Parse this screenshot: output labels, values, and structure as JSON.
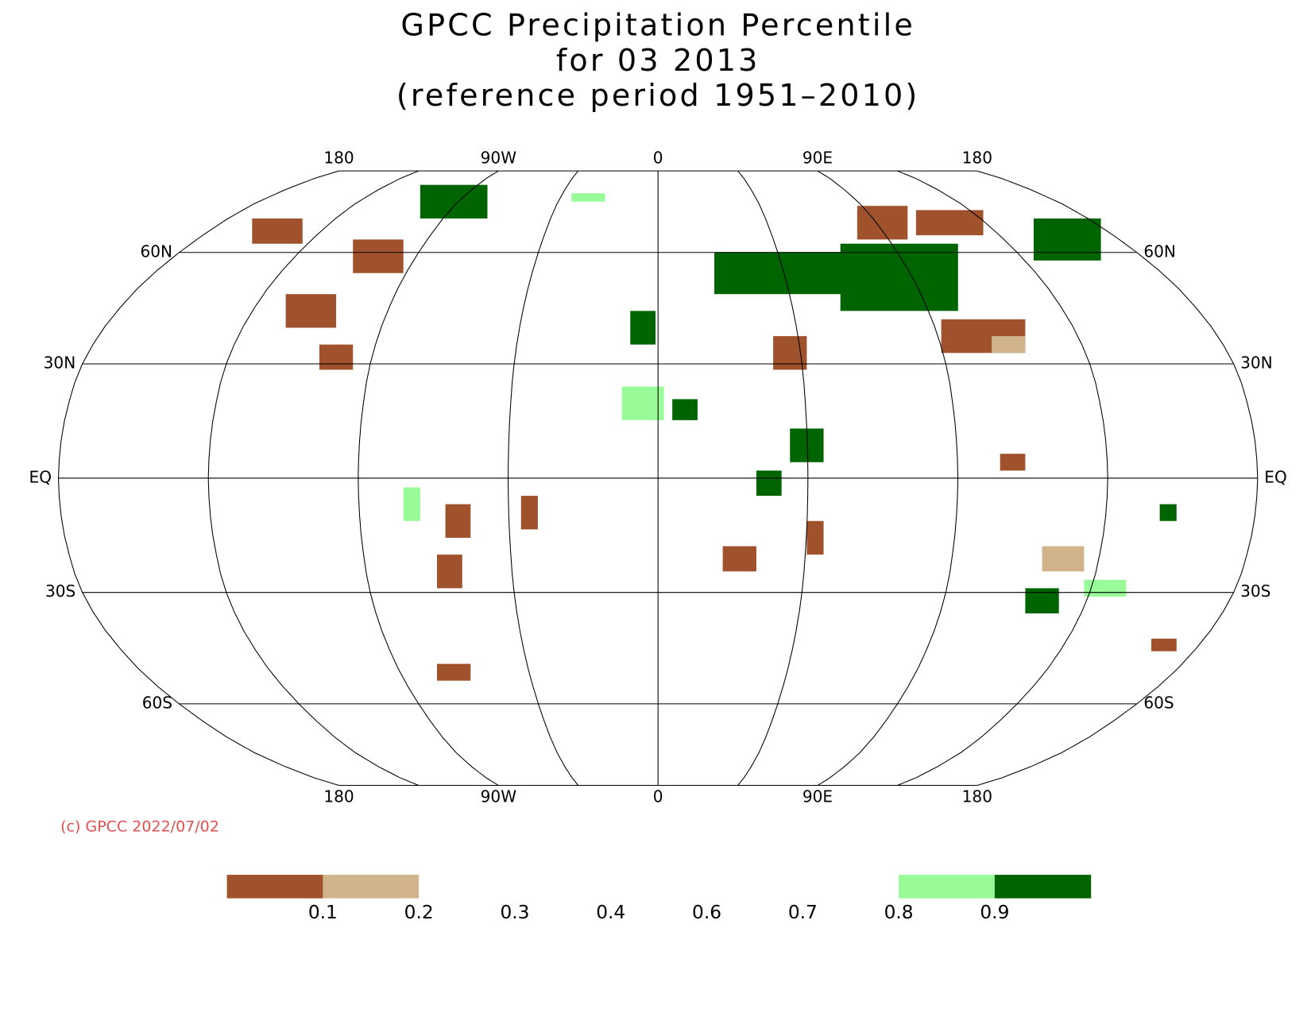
{
  "header": {
    "title_lines": [
      "GPCC Precipitation Percentile",
      "for 03 2013",
      "(reference period 1951–2010)"
    ]
  },
  "map": {
    "projection": "robinson",
    "lon_labels": [
      "180",
      "90W",
      "0",
      "90E",
      "180"
    ],
    "lat_labels": [
      "60N",
      "30N",
      "EQ",
      "30S",
      "60S"
    ],
    "credit": "(c) GPCC 2022/07/02"
  },
  "colorbar": {
    "colors": [
      "#a0522d",
      "#d2b48c",
      "#ffffff",
      "#ffffff",
      "#ffffff",
      "#ffffff",
      "#ffffff",
      "#98fb98",
      "#006400"
    ],
    "ticks": [
      0.1,
      0.2,
      0.3,
      0.4,
      0.6,
      0.7,
      0.8,
      0.9
    ]
  }
}
